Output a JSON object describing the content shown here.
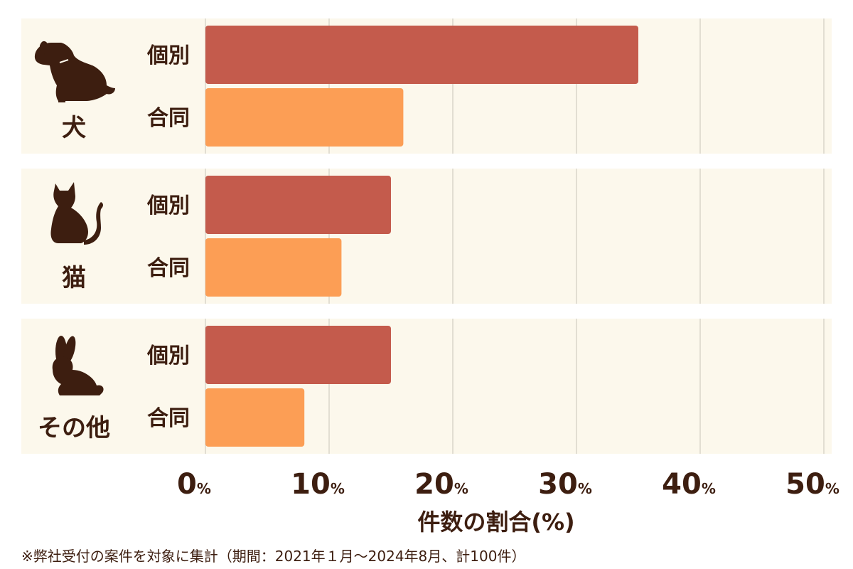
{
  "chart_data": {
    "type": "bar",
    "orientation": "horizontal",
    "categories": [
      "犬",
      "猫",
      "その他"
    ],
    "category_icons": [
      "dog-icon",
      "cat-icon",
      "rabbit-icon"
    ],
    "series": [
      {
        "name": "個別",
        "values": [
          35.0,
          15.0,
          15.0
        ],
        "color": "#c45b4c"
      },
      {
        "name": "合同",
        "values": [
          16.0,
          11.0,
          8.0
        ],
        "color": "#fc9e55"
      }
    ],
    "xlim": [
      0,
      50
    ],
    "ticks": [
      {
        "num": "0",
        "unit": "%"
      },
      {
        "num": "10",
        "unit": "%"
      },
      {
        "num": "20",
        "unit": "%"
      },
      {
        "num": "30",
        "unit": "%"
      },
      {
        "num": "40",
        "unit": "%"
      },
      {
        "num": "50",
        "unit": "%"
      }
    ],
    "tick_values": [
      0,
      10,
      20,
      30,
      40,
      50
    ],
    "xlabel": "件数の割合(%)",
    "grid": true
  },
  "colors": {
    "panel_bg": "#fcf8ec",
    "grid": "#c8c3b8",
    "text": "#3d1e10"
  },
  "footnote": "※弊社受付の案件を対象に集計（期間：2021年１月〜2024年8月、計100件）"
}
